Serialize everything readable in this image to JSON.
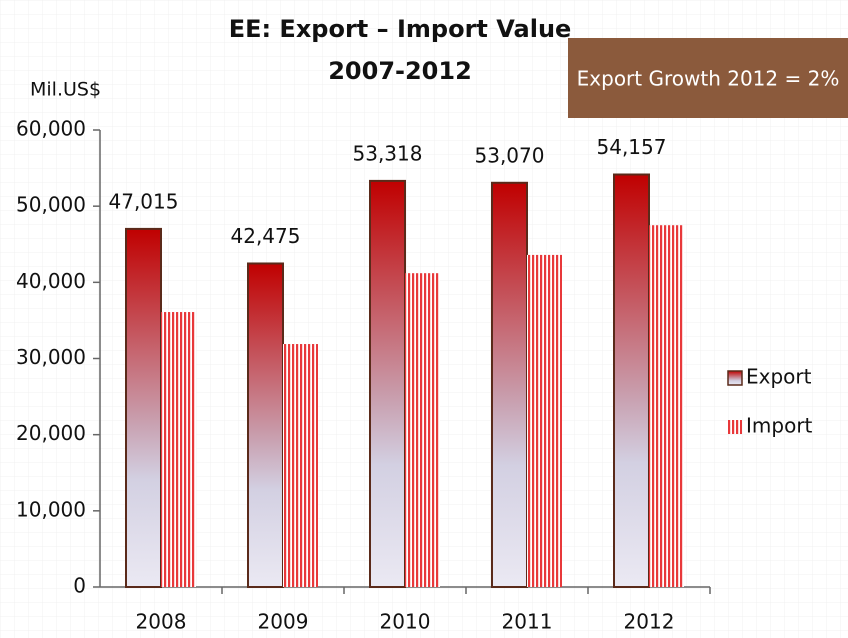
{
  "chart_data": {
    "type": "bar",
    "title": "EE: Export – Import Value",
    "subtitle": "2007-2012",
    "y_axis_label": "Mil.US$",
    "annotation": "Export Growth 2012 = 2%",
    "categories": [
      "2008",
      "2009",
      "2010",
      "2011",
      "2012"
    ],
    "series": [
      {
        "name": "Export",
        "color": "#c00000",
        "values": [
          47015,
          42475,
          53318,
          53070,
          54157
        ],
        "value_labels": [
          "47,015",
          "42,475",
          "53,318",
          "53,070",
          "54,157"
        ]
      },
      {
        "name": "Import",
        "color": "#e8383a",
        "values": [
          36100,
          31900,
          41200,
          43600,
          47500
        ]
      }
    ],
    "ylim": [
      0,
      60000
    ],
    "yticks": [
      {
        "value": 0,
        "label": "0"
      },
      {
        "value": 10000,
        "label": "10,000"
      },
      {
        "value": 20000,
        "label": "20,000"
      },
      {
        "value": 30000,
        "label": "30,000"
      },
      {
        "value": 40000,
        "label": "40,000"
      },
      {
        "value": 50000,
        "label": "50,000"
      },
      {
        "value": 60000,
        "label": "60,000"
      }
    ],
    "grid": false,
    "legend": "right"
  }
}
